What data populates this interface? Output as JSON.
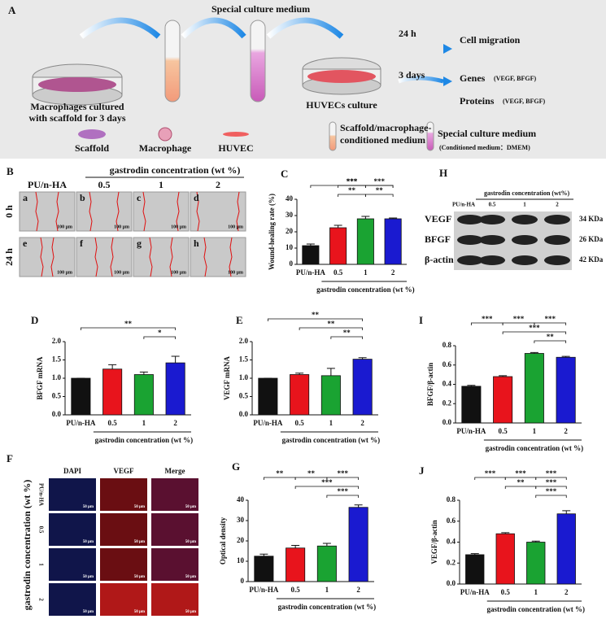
{
  "panel_a": {
    "letter": "A",
    "medium": "Special culture medium",
    "time1": "24 h",
    "out1": "Cell migration",
    "time2": "3 days",
    "out2": "Genes",
    "out2_sub": "(VEGF, BFGF)",
    "out3": "Proteins",
    "out3_sub": "(VEGF, BFGF)",
    "dish1": [
      "Macrophages cultured",
      "with scaffold for 3 days"
    ],
    "dish2": "HUVECs culture",
    "legend": [
      "Scaffold",
      "Macrophage",
      "HUVEC"
    ],
    "tube1": [
      "Scaffold/macrophage-",
      "conditioned medium"
    ],
    "tube2": [
      "Special culture medium",
      "(Conditioned medium：DMEM)"
    ]
  },
  "panel_b": {
    "letter": "B",
    "header": "gastrodin concentration (wt %)",
    "columns": [
      "PU/n-HA",
      "0.5",
      "1",
      "2"
    ],
    "rows": [
      "0 h",
      "24 h"
    ],
    "images": [
      "a",
      "b",
      "c",
      "d",
      "e",
      "f",
      "g",
      "h"
    ],
    "scale": "100 μm"
  },
  "panel_h": {
    "letter": "H",
    "header": "gastrodin concentration (wt%)",
    "lanes": [
      "PU/n-HA",
      "0.5",
      "1",
      "2"
    ],
    "rows": [
      "VEGF",
      "BFGF",
      "β-actin"
    ],
    "sizes": [
      "34 KDa",
      "26 KDa",
      "42 KDa"
    ]
  },
  "panel_f": {
    "letter": "F",
    "columns": [
      "DAPI",
      "VEGF",
      "Merge"
    ],
    "rows": [
      "PU/n-HA",
      "0.5",
      "1",
      "2"
    ],
    "side": "gastrodin concentration (wt %)",
    "scale": "50 μm"
  },
  "chart_data": [
    {
      "type": "bar",
      "letter": "C",
      "ylabel": "Wound-healing rate (%)",
      "xlabel": "gastrodin concentration (wt %)",
      "categories": [
        "PU/n-HA",
        "0.5",
        "1",
        "2"
      ],
      "values": [
        11.5,
        22.5,
        28,
        28
      ],
      "errors": [
        1,
        1.5,
        1.5,
        0.5
      ],
      "colors": [
        "#111111",
        "#e8141c",
        "#1aa332",
        "#1a1ad0"
      ],
      "ylim": [
        0,
        40
      ],
      "yticks": [
        0,
        10,
        20,
        30,
        40
      ],
      "annotations": [
        "***",
        "***",
        "***",
        "**",
        "**"
      ]
    },
    {
      "type": "bar",
      "letter": "D",
      "ylabel": "BFGF mRNA",
      "xlabel": "gastrodin concentration (wt %)",
      "categories": [
        "PU/n-HA",
        "0.5",
        "1",
        "2"
      ],
      "values": [
        1.0,
        1.25,
        1.1,
        1.42
      ],
      "errors": [
        0,
        0.12,
        0.07,
        0.18
      ],
      "colors": [
        "#111111",
        "#e8141c",
        "#1aa332",
        "#1a1ad0"
      ],
      "ylim": [
        0,
        2
      ],
      "yticks": [
        {
          "value": 0,
          "label": "0.0"
        },
        0.5,
        {
          "value": 1,
          "label": "1.0"
        },
        1.5,
        {
          "value": 2,
          "label": "2.0"
        }
      ],
      "annotations": [
        "**",
        "*"
      ]
    },
    {
      "type": "bar",
      "letter": "E",
      "ylabel": "VEGF mRNA",
      "xlabel": "gastrodin concentration (wt %)",
      "categories": [
        "PU/n-HA",
        "0.5",
        "1",
        "2"
      ],
      "values": [
        1.0,
        1.1,
        1.07,
        1.52
      ],
      "errors": [
        0,
        0.04,
        0.2,
        0.04
      ],
      "colors": [
        "#111111",
        "#e8141c",
        "#1aa332",
        "#1a1ad0"
      ],
      "ylim": [
        0,
        2
      ],
      "yticks": [
        {
          "value": 0,
          "label": "0.0"
        },
        0.5,
        {
          "value": 1,
          "label": "1.0"
        },
        1.5,
        {
          "value": 2,
          "label": "2.0"
        }
      ],
      "annotations": [
        "**",
        "**",
        "**"
      ]
    },
    {
      "type": "bar",
      "letter": "I",
      "ylabel": "BFGF/β-actin",
      "xlabel": "gastrodin concentration (wt %)",
      "categories": [
        "PU/n-HA",
        "0.5",
        "1",
        "2"
      ],
      "values": [
        0.38,
        0.48,
        0.72,
        0.68
      ],
      "errors": [
        0.01,
        0.01,
        0.01,
        0.01
      ],
      "colors": [
        "#111111",
        "#e8141c",
        "#1aa332",
        "#1a1ad0"
      ],
      "ylim": [
        0,
        0.8
      ],
      "yticks": [
        {
          "value": 0,
          "label": "0.0"
        },
        0.2,
        0.4,
        0.6,
        0.8
      ],
      "annotations": [
        "***",
        "***",
        "***",
        "***",
        "**"
      ]
    },
    {
      "type": "bar",
      "letter": "G",
      "ylabel": "Optical density",
      "xlabel": "gastrodin concentration (wt %)",
      "categories": [
        "PU/n-HA",
        "0.5",
        "1",
        "2"
      ],
      "values": [
        12.5,
        16.5,
        17.5,
        36.5
      ],
      "errors": [
        1,
        1.3,
        1.3,
        1.2
      ],
      "colors": [
        "#111111",
        "#e8141c",
        "#1aa332",
        "#1a1ad0"
      ],
      "ylim": [
        0,
        40
      ],
      "yticks": [
        0,
        10,
        20,
        30,
        40
      ],
      "annotations": [
        "**",
        "**",
        "***",
        "***",
        "***"
      ]
    },
    {
      "type": "bar",
      "letter": "J",
      "ylabel": "VEGF/β-actin",
      "xlabel": "gastrodin concentration (wt %)",
      "categories": [
        "PU/n-HA",
        "0.5",
        "1",
        "2"
      ],
      "values": [
        0.28,
        0.48,
        0.4,
        0.67
      ],
      "errors": [
        0.01,
        0.01,
        0.01,
        0.03
      ],
      "colors": [
        "#111111",
        "#e8141c",
        "#1aa332",
        "#1a1ad0"
      ],
      "ylim": [
        0,
        0.8
      ],
      "yticks": [
        {
          "value": 0,
          "label": "0.0"
        },
        0.2,
        0.4,
        0.6,
        0.8
      ],
      "annotations": [
        "***",
        "***",
        "***",
        "**",
        "***",
        "***"
      ]
    }
  ]
}
